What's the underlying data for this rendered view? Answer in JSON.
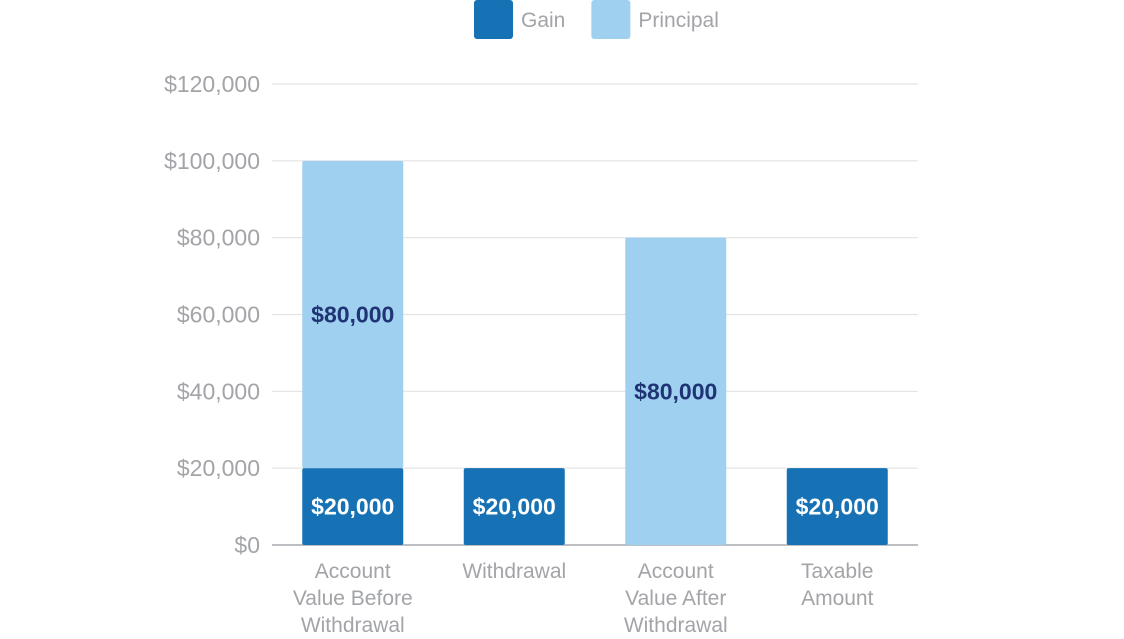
{
  "chart_data": {
    "type": "bar",
    "stacked": true,
    "categories": [
      [
        "Account",
        "Value Before",
        "Withdrawal"
      ],
      [
        "Withdrawal"
      ],
      [
        "Account",
        "Value After",
        "Withdrawal"
      ],
      [
        "Taxable",
        "Amount"
      ]
    ],
    "series": [
      {
        "name": "Gain",
        "color": "#1672b4",
        "values": [
          20000,
          20000,
          0,
          20000
        ],
        "label_color": "#ffffff",
        "labels": [
          "$20,000",
          "$20,000",
          "",
          "$20,000"
        ]
      },
      {
        "name": "Principal",
        "color": "#9fd0ef",
        "values": [
          80000,
          0,
          80000,
          0
        ],
        "label_color": "#1f3475",
        "labels": [
          "$80,000",
          "",
          "$80,000",
          ""
        ]
      }
    ],
    "ylim": [
      0,
      120000
    ],
    "yticks": [
      0,
      20000,
      40000,
      60000,
      80000,
      100000,
      120000
    ],
    "ytick_labels": [
      "$0",
      "$20,000",
      "$40,000",
      "$60,000",
      "$80,000",
      "$100,000",
      "$120,000"
    ],
    "grid": true,
    "legend_position": "top",
    "title": "",
    "xlabel": "",
    "ylabel": ""
  }
}
